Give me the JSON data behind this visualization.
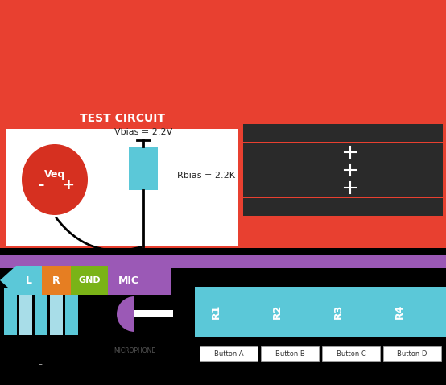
{
  "bg_color": "#E84030",
  "white_bg": "#FFFFFF",
  "black_bg": "#000000",
  "purple_bar": "#9B59B6",
  "cyan_color": "#5BC8D8",
  "dark_row": "#2A2A2A",
  "title_text": "TEST CIRCUIT",
  "title_color": "#FFFFFF",
  "veq_color": "#D63020",
  "veq_text": "Veq",
  "vbias_text": "Vbias = 2.2V",
  "rbias_text": "Rbias = 2.2K",
  "L_color": "#5BC8D8",
  "R_color": "#E67E22",
  "GND_color": "#7AB317",
  "MIC_color": "#9B59B6",
  "r_labels": [
    "R1",
    "R2",
    "R3",
    "R4"
  ],
  "btn_labels": [
    "Button A",
    "Button B",
    "Button C",
    "Button D"
  ]
}
